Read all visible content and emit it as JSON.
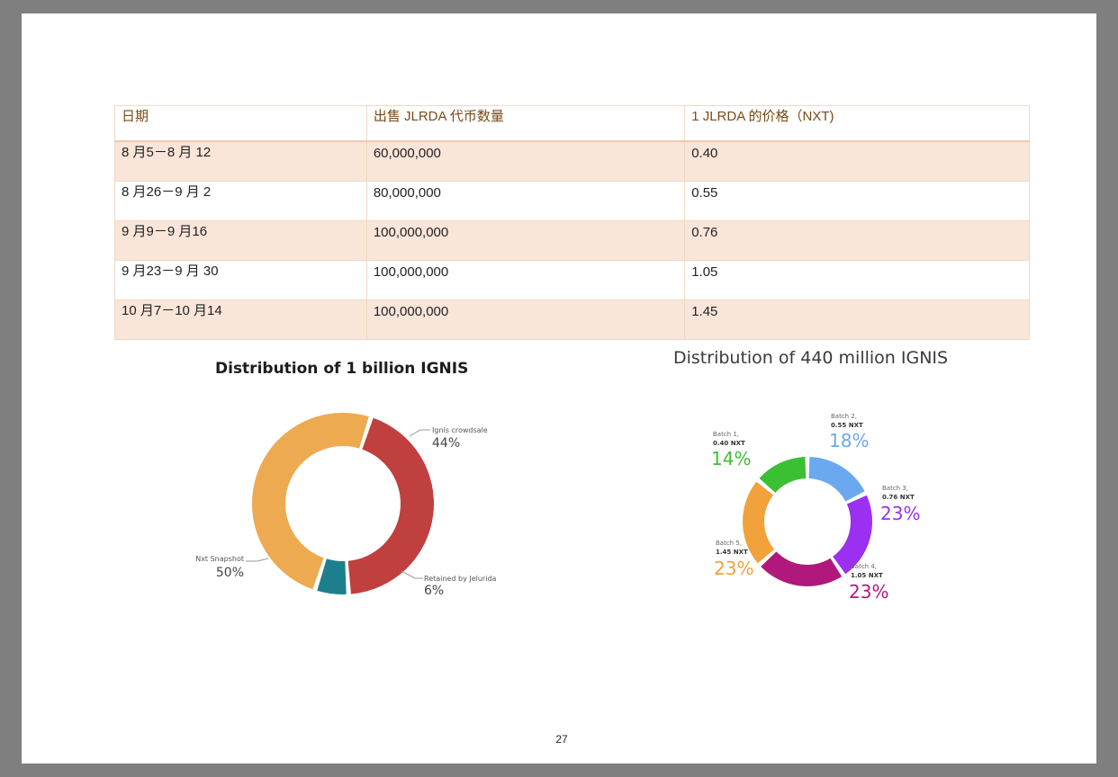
{
  "table": {
    "headers": [
      "日期",
      "出售 JLRDA 代币数量",
      "1 JLRDA 的价格（NXT)"
    ],
    "rows": [
      [
        "8 月5－8 月 12",
        "60,000,000",
        "0.40"
      ],
      [
        "8 月26－9 月 2",
        "80,000,000",
        "0.55"
      ],
      [
        "9 月9－9 月16",
        "100,000,000",
        "0.76"
      ],
      [
        "9 月23－9 月 30",
        "100,000,000",
        "1.05"
      ],
      [
        "10 月7－10 月14",
        "100,000,000",
        "1.45"
      ]
    ]
  },
  "chart_data": [
    {
      "type": "pie",
      "title": "Distribution of 1 billion IGNIS",
      "style": "donut",
      "slices": [
        {
          "label": "Ignis crowdsale",
          "value": 44,
          "value_label": "44%",
          "color": "#bf403f"
        },
        {
          "label": "Retained by Jelurida",
          "value": 6,
          "value_label": "6%",
          "color": "#1e7f8c"
        },
        {
          "label": "Nxt Snapshot",
          "value": 50,
          "value_label": "50%",
          "color": "#eeaa50"
        }
      ]
    },
    {
      "type": "pie",
      "title": "Distribution of 440 million IGNIS",
      "style": "donut",
      "slices": [
        {
          "label": "Batch 1,",
          "price": "0.40 NXT",
          "value": 14,
          "value_label": "14%",
          "color": "#3bbf33"
        },
        {
          "label": "Batch 2,",
          "price": "0.55 NXT",
          "value": 18,
          "value_label": "18%",
          "color": "#6aa8ef"
        },
        {
          "label": "Batch 3,",
          "price": "0.76 NXT",
          "value": 23,
          "value_label": "23%",
          "color": "#9b30f0"
        },
        {
          "label": "Batch 4,",
          "price": "1.05 NXT",
          "value": 23,
          "value_label": "23%",
          "color": "#b0187c"
        },
        {
          "label": "Batch 5,",
          "price": "1.45 NXT",
          "value": 23,
          "value_label": "23%",
          "color": "#f2a23a"
        }
      ]
    }
  ],
  "page_number": "27"
}
